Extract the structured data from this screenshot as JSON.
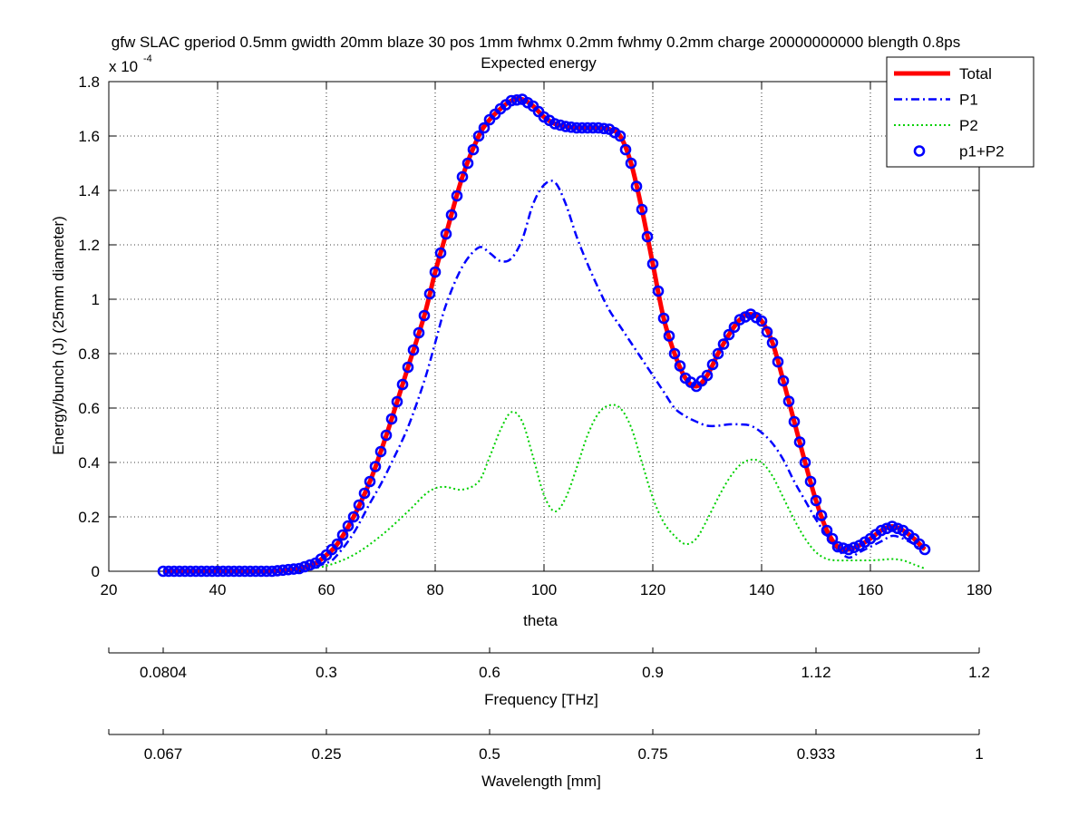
{
  "chart_data": {
    "type": "line",
    "title": "gfw SLAC gperiod 0.5mm gwidth 20mm blaze 30 pos 1mm fwhmx 0.2mm fwhmy 0.2mm charge 20000000000 blength 0.8ps",
    "subtitle": "Expected energy",
    "xlabel": "theta",
    "ylabel": "Energy/bunch (J)  (25mm diameter)",
    "y_exponent_label": "x 10",
    "y_exponent": "-4",
    "xlim": [
      20,
      180
    ],
    "ylim": [
      0,
      1.8
    ],
    "y_scale_factor": 0.0001,
    "grid": true,
    "legend_position": "top-right",
    "x_ticks": [
      20,
      40,
      60,
      80,
      100,
      120,
      140,
      160,
      180
    ],
    "y_ticks": [
      0,
      0.2,
      0.4,
      0.6,
      0.8,
      1,
      1.2,
      1.4,
      1.6,
      1.8
    ],
    "x_tick_labels": [
      "20",
      "40",
      "60",
      "80",
      "100",
      "120",
      "140",
      "160",
      "180"
    ],
    "y_tick_labels": [
      "0",
      "0.2",
      "0.4",
      "0.6",
      "0.8",
      "1",
      "1.2",
      "1.4",
      "1.6",
      "1.8"
    ],
    "secondary_axes": [
      {
        "label": "Frequency [THz]",
        "ticks": [
          {
            "theta": 30,
            "label": "0.0804"
          },
          {
            "theta": 60,
            "label": "0.3"
          },
          {
            "theta": 90,
            "label": "0.6"
          },
          {
            "theta": 120,
            "label": "0.9"
          },
          {
            "theta": 150,
            "label": "1.12"
          },
          {
            "theta": 180,
            "label": "1.2"
          }
        ]
      },
      {
        "label": "Wavelength [mm]",
        "ticks": [
          {
            "theta": 30,
            "label": "0.067"
          },
          {
            "theta": 60,
            "label": "0.25"
          },
          {
            "theta": 90,
            "label": "0.5"
          },
          {
            "theta": 120,
            "label": "0.75"
          },
          {
            "theta": 150,
            "label": "0.933"
          },
          {
            "theta": 180,
            "label": "1"
          }
        ]
      }
    ],
    "series": [
      {
        "name": "Total",
        "color": "#ff0000",
        "style": "solid",
        "x": [
          30,
          40,
          50,
          55,
          58,
          60,
          62,
          65,
          68,
          70,
          72,
          75,
          78,
          80,
          82,
          85,
          88,
          90,
          92,
          94,
          96,
          98,
          100,
          102,
          104,
          106,
          108,
          110,
          112,
          114,
          116,
          118,
          120,
          122,
          124,
          126,
          128,
          130,
          132,
          134,
          136,
          138,
          140,
          142,
          144,
          146,
          148,
          150,
          152,
          154,
          156,
          158,
          160,
          162,
          164,
          166,
          168,
          170
        ],
        "y": [
          0,
          0,
          0,
          0.01,
          0.03,
          0.06,
          0.1,
          0.2,
          0.33,
          0.44,
          0.56,
          0.75,
          0.94,
          1.1,
          1.24,
          1.45,
          1.6,
          1.66,
          1.7,
          1.73,
          1.735,
          1.71,
          1.67,
          1.645,
          1.635,
          1.63,
          1.63,
          1.63,
          1.625,
          1.6,
          1.5,
          1.33,
          1.13,
          0.93,
          0.8,
          0.71,
          0.68,
          0.72,
          0.8,
          0.87,
          0.925,
          0.945,
          0.92,
          0.84,
          0.7,
          0.55,
          0.4,
          0.26,
          0.15,
          0.09,
          0.08,
          0.095,
          0.12,
          0.15,
          0.165,
          0.15,
          0.12,
          0.08
        ]
      },
      {
        "name": "P1",
        "color": "#0000ff",
        "style": "dashdot",
        "x": [
          55,
          60,
          62,
          65,
          68,
          70,
          72,
          75,
          78,
          80,
          82,
          85,
          88,
          90,
          92,
          94,
          96,
          98,
          100,
          102,
          104,
          106,
          108,
          110,
          112,
          114,
          116,
          118,
          120,
          122,
          124,
          126,
          128,
          130,
          132,
          134,
          136,
          138,
          140,
          142,
          144,
          146,
          148,
          150,
          152,
          154,
          156,
          158,
          160,
          162,
          164,
          166,
          168,
          170
        ],
        "y": [
          0.005,
          0.03,
          0.06,
          0.14,
          0.25,
          0.32,
          0.4,
          0.53,
          0.7,
          0.84,
          0.98,
          1.12,
          1.19,
          1.17,
          1.14,
          1.15,
          1.22,
          1.35,
          1.42,
          1.43,
          1.35,
          1.23,
          1.13,
          1.04,
          0.96,
          0.9,
          0.84,
          0.78,
          0.72,
          0.66,
          0.6,
          0.57,
          0.55,
          0.535,
          0.535,
          0.54,
          0.54,
          0.535,
          0.51,
          0.47,
          0.41,
          0.33,
          0.26,
          0.19,
          0.13,
          0.08,
          0.05,
          0.07,
          0.09,
          0.11,
          0.13,
          0.12,
          0.1,
          0.08
        ]
      },
      {
        "name": "P2",
        "color": "#00d000",
        "style": "dotted",
        "x": [
          55,
          60,
          65,
          70,
          75,
          78,
          80,
          82,
          85,
          88,
          90,
          92,
          94,
          96,
          98,
          100,
          102,
          104,
          106,
          108,
          110,
          112,
          114,
          116,
          118,
          120,
          122,
          124,
          126,
          128,
          130,
          132,
          134,
          136,
          138,
          140,
          142,
          144,
          146,
          148,
          150,
          152,
          154,
          156,
          158,
          160,
          162,
          164,
          166,
          168,
          170
        ],
        "y": [
          0.005,
          0.02,
          0.06,
          0.13,
          0.22,
          0.28,
          0.305,
          0.31,
          0.3,
          0.33,
          0.42,
          0.52,
          0.585,
          0.55,
          0.42,
          0.28,
          0.22,
          0.27,
          0.38,
          0.5,
          0.58,
          0.61,
          0.6,
          0.53,
          0.4,
          0.27,
          0.18,
          0.13,
          0.1,
          0.12,
          0.19,
          0.27,
          0.34,
          0.39,
          0.41,
          0.4,
          0.35,
          0.27,
          0.19,
          0.12,
          0.07,
          0.045,
          0.04,
          0.04,
          0.04,
          0.04,
          0.042,
          0.045,
          0.04,
          0.025,
          0.01
        ]
      },
      {
        "name": "p1+P2",
        "color": "#0000ff",
        "style": "circles",
        "x": [
          30,
          40,
          50,
          55,
          58,
          60,
          62,
          65,
          68,
          70,
          72,
          75,
          78,
          80,
          82,
          85,
          88,
          90,
          92,
          94,
          96,
          98,
          100,
          102,
          104,
          106,
          108,
          110,
          112,
          114,
          116,
          118,
          120,
          122,
          124,
          126,
          128,
          130,
          132,
          134,
          136,
          138,
          140,
          142,
          144,
          146,
          148,
          150,
          152,
          154,
          156,
          158,
          160,
          162,
          164,
          166,
          168,
          170
        ],
        "y": [
          0,
          0,
          0,
          0.01,
          0.03,
          0.06,
          0.1,
          0.2,
          0.33,
          0.44,
          0.56,
          0.75,
          0.94,
          1.1,
          1.24,
          1.45,
          1.6,
          1.66,
          1.7,
          1.73,
          1.735,
          1.71,
          1.67,
          1.645,
          1.635,
          1.63,
          1.63,
          1.63,
          1.625,
          1.6,
          1.5,
          1.33,
          1.13,
          0.93,
          0.8,
          0.71,
          0.68,
          0.72,
          0.8,
          0.87,
          0.925,
          0.945,
          0.92,
          0.84,
          0.7,
          0.55,
          0.4,
          0.26,
          0.15,
          0.09,
          0.08,
          0.095,
          0.12,
          0.15,
          0.165,
          0.15,
          0.12,
          0.08
        ]
      }
    ]
  }
}
